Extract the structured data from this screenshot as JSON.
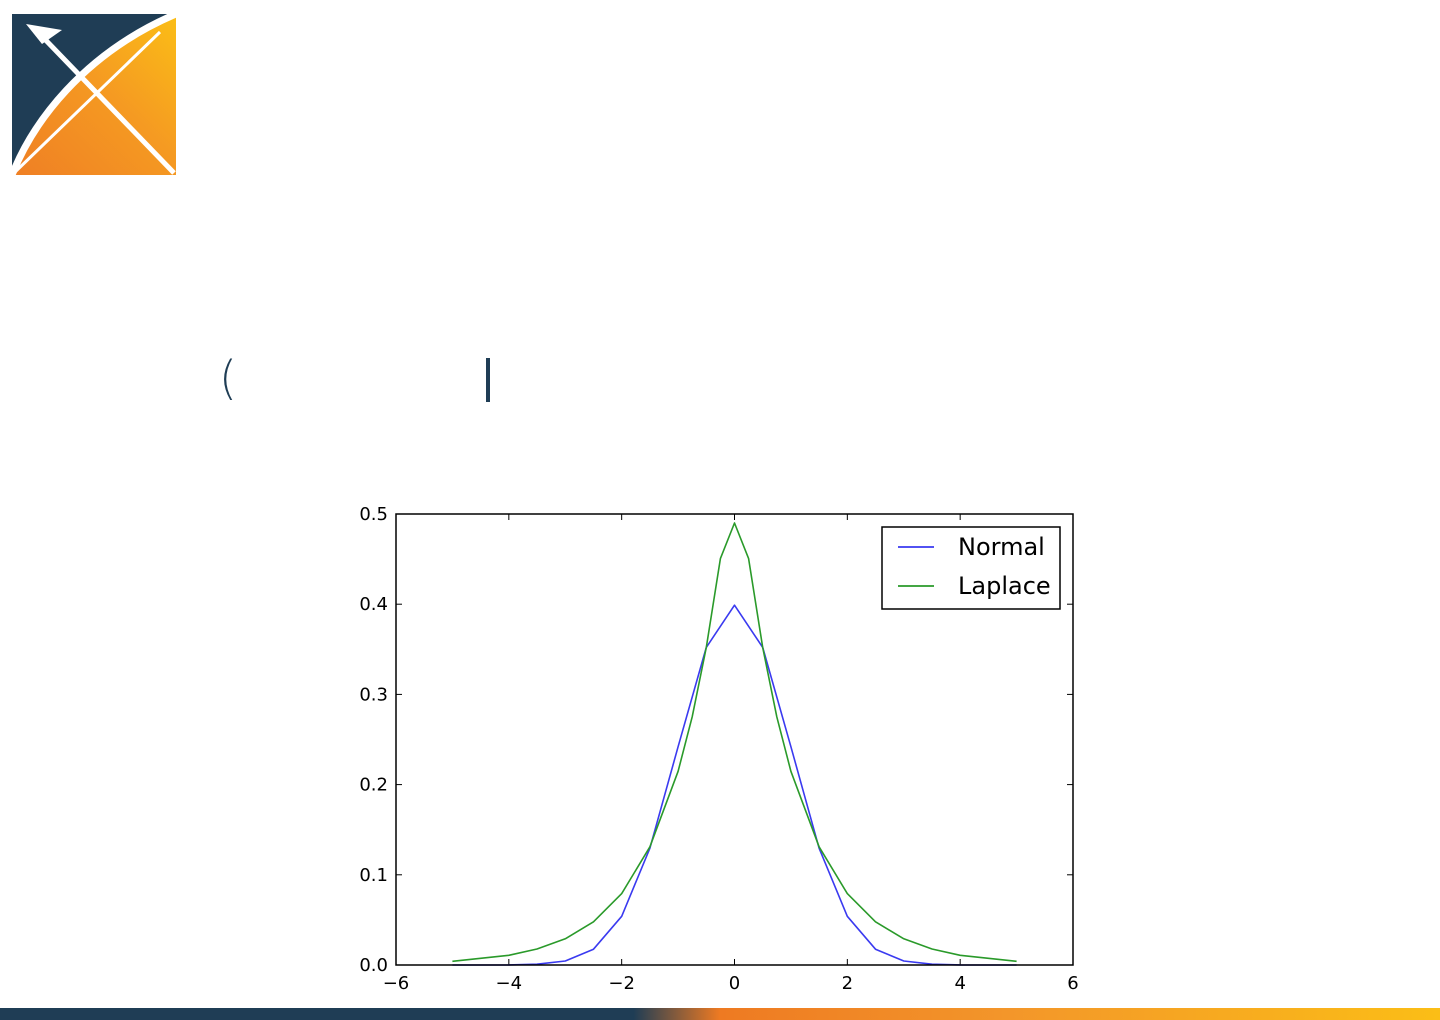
{
  "slide": {
    "fragment_left": "(",
    "accent_colors": {
      "navy": "#1f3d55",
      "orange": "#f0892a",
      "yellow": "#fbb917"
    }
  },
  "logo": {
    "icon": "x-logo-icon"
  },
  "chart_data": {
    "type": "line",
    "xlim": [
      -6,
      6
    ],
    "ylim": [
      0,
      0.5
    ],
    "xticks": [
      "−6",
      "−4",
      "−2",
      "0",
      "2",
      "4",
      "6"
    ],
    "yticks": [
      "0.0",
      "0.1",
      "0.2",
      "0.3",
      "0.4",
      "0.5"
    ],
    "legend": "top-right",
    "grid": false,
    "series": [
      {
        "name": "Normal",
        "color": "#3a3af0",
        "x": [
          -5,
          -4,
          -3.5,
          -3,
          -2.5,
          -2,
          -1.5,
          -1,
          -0.5,
          0,
          0.5,
          1,
          1.5,
          2,
          2.5,
          3,
          3.5,
          4,
          5
        ],
        "y": [
          0.0,
          0.0001,
          0.0009,
          0.0044,
          0.0175,
          0.054,
          0.1295,
          0.242,
          0.3521,
          0.3989,
          0.3521,
          0.242,
          0.1295,
          0.054,
          0.0175,
          0.0044,
          0.0009,
          0.0001,
          0.0
        ]
      },
      {
        "name": "Laplace",
        "color": "#2a9a2a",
        "x": [
          -5,
          -4,
          -3.5,
          -3,
          -2.5,
          -2,
          -1.5,
          -1,
          -0.75,
          -0.5,
          -0.25,
          0,
          0.25,
          0.5,
          0.75,
          1,
          1.5,
          2,
          2.5,
          3,
          3.5,
          4,
          5
        ],
        "y": [
          0.0041,
          0.0108,
          0.0177,
          0.0291,
          0.0479,
          0.0792,
          0.131,
          0.2148,
          0.2752,
          0.3521,
          0.4506,
          0.49,
          0.4506,
          0.3521,
          0.2752,
          0.2148,
          0.131,
          0.0792,
          0.0479,
          0.0291,
          0.0177,
          0.0108,
          0.0041
        ]
      }
    ]
  }
}
